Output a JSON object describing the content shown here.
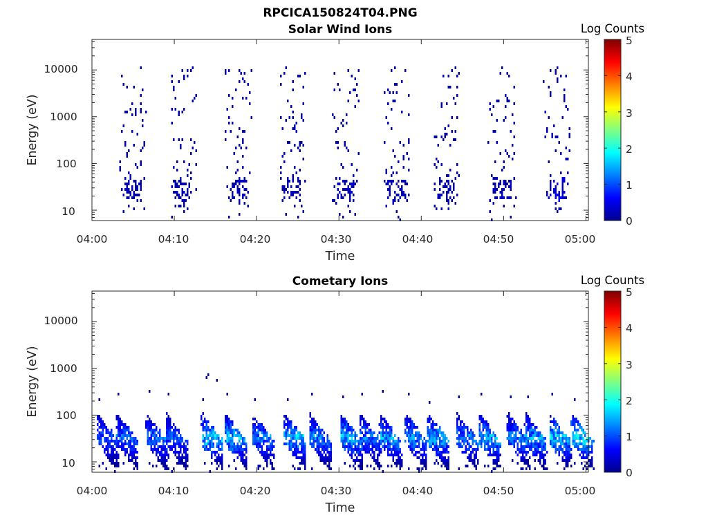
{
  "figure_title": "RPCICA150824T04.PNG",
  "colormap": [
    "#00008f",
    "#0000ff",
    "#0080ff",
    "#00ffff",
    "#80ff80",
    "#ffff00",
    "#ff8000",
    "#ff0000",
    "#800000"
  ],
  "colorbar": {
    "label": "Log Counts",
    "ticks": [
      "0",
      "1",
      "2",
      "3",
      "4",
      "5"
    ],
    "range": [
      0,
      5
    ]
  },
  "chart_data": [
    {
      "type": "heatmap",
      "title": "Solar Wind Ions",
      "xlabel": "Time",
      "ylabel": "Energy (eV)",
      "x_ticks": [
        "04:00",
        "04:10",
        "04:20",
        "04:30",
        "04:40",
        "04:50",
        "05:00"
      ],
      "x_range_minutes": [
        0,
        60.3
      ],
      "y_scale": "log",
      "y_range_eV": [
        6,
        45000
      ],
      "y_ticks": [
        "10",
        "100",
        "1000",
        "10000"
      ],
      "bursts": [
        {
          "t": 4.8,
          "v": 0.25
        },
        {
          "t": 11.0,
          "v": 0.25
        },
        {
          "t": 17.7,
          "v": 0.35
        },
        {
          "t": 24.2,
          "v": 0.3
        },
        {
          "t": 30.7,
          "v": 0.3
        },
        {
          "t": 37.0,
          "v": 0.3
        },
        {
          "t": 43.0,
          "v": 0.3
        },
        {
          "t": 49.7,
          "v": 0.3
        },
        {
          "t": 56.3,
          "v": 0.6
        }
      ]
    },
    {
      "type": "heatmap",
      "title": "Cometary Ions",
      "xlabel": "Time",
      "ylabel": "Energy (eV)",
      "x_ticks": [
        "04:00",
        "04:10",
        "04:20",
        "04:30",
        "04:40",
        "04:50",
        "05:00"
      ],
      "x_range_minutes": [
        0,
        60.3
      ],
      "y_scale": "log",
      "y_range_eV": [
        6,
        45000
      ],
      "y_ticks": [
        "10",
        "100",
        "1000",
        "10000"
      ],
      "bursts": [
        {
          "t": 1.8,
          "v": 1.2
        },
        {
          "t": 4.2,
          "v": 1.4
        },
        {
          "t": 7.8,
          "v": 1.4
        },
        {
          "t": 10.2,
          "v": 1.2
        },
        {
          "t": 14.5,
          "v": 2.0
        },
        {
          "t": 17.4,
          "v": 1.9
        },
        {
          "t": 20.7,
          "v": 1.5
        },
        {
          "t": 24.6,
          "v": 1.8
        },
        {
          "t": 27.6,
          "v": 1.5
        },
        {
          "t": 31.4,
          "v": 1.8
        },
        {
          "t": 33.7,
          "v": 1.4
        },
        {
          "t": 36.2,
          "v": 1.7
        },
        {
          "t": 39.3,
          "v": 1.6
        },
        {
          "t": 42.0,
          "v": 1.8
        },
        {
          "t": 45.5,
          "v": 1.5
        },
        {
          "t": 48.2,
          "v": 1.8
        },
        {
          "t": 51.7,
          "v": 1.5
        },
        {
          "t": 53.8,
          "v": 1.7
        },
        {
          "t": 56.8,
          "v": 2.0
        },
        {
          "t": 59.5,
          "v": 2.1
        }
      ]
    }
  ]
}
